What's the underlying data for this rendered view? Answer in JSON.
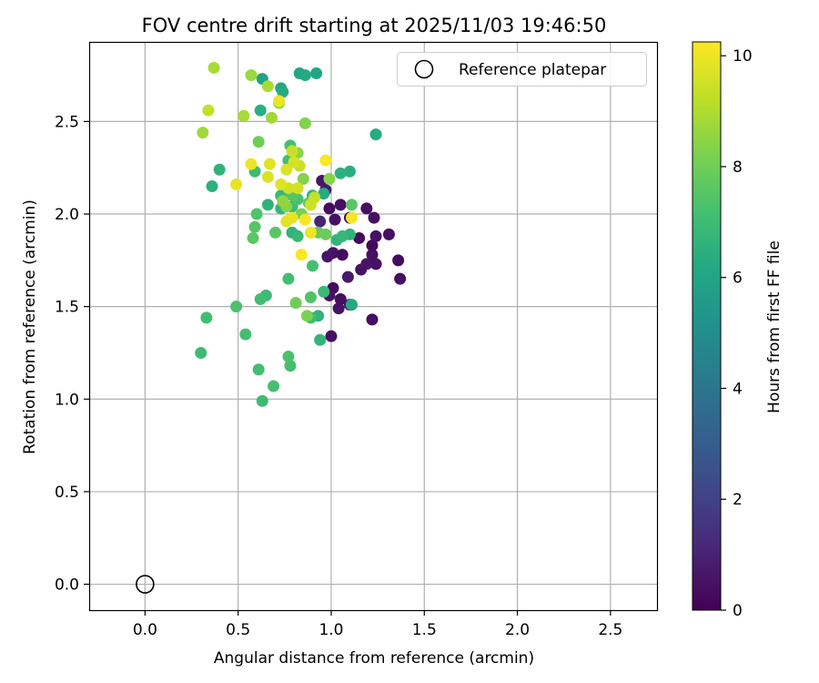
{
  "chart_data": {
    "type": "scatter",
    "title": "FOV centre drift starting at 2025/11/03 19:46:50",
    "xlabel": "Angular distance from reference (arcmin)",
    "ylabel": "Rotation from reference (arcmin)",
    "xlim": [
      -0.3,
      2.75
    ],
    "ylim": [
      -0.14,
      2.93
    ],
    "xticks": [
      0.0,
      0.5,
      1.0,
      1.5,
      2.0,
      2.5
    ],
    "xtick_labels": [
      "0.0",
      "0.5",
      "1.0",
      "1.5",
      "2.0",
      "2.5"
    ],
    "yticks": [
      0.0,
      0.5,
      1.0,
      1.5,
      2.0,
      2.5
    ],
    "ytick_labels": [
      "0.0",
      "0.5",
      "1.0",
      "1.5",
      "2.0",
      "2.5"
    ],
    "grid": true,
    "legend": {
      "position": "top-right",
      "label": "Reference platepar"
    },
    "reference_point": {
      "x": 0.0,
      "y": 0.0
    },
    "colorbar": {
      "label": "Hours from first FF file",
      "min": 0,
      "max": 10.25,
      "ticks": [
        0,
        2,
        4,
        6,
        8,
        10
      ],
      "tick_labels": [
        "0",
        "2",
        "4",
        "6",
        "8",
        "10"
      ],
      "colormap": "viridis"
    },
    "points": [
      {
        "x": 0.99,
        "y": 2.03,
        "h": 0.3
      },
      {
        "x": 1.05,
        "y": 2.05,
        "h": 0.4
      },
      {
        "x": 1.02,
        "y": 1.97,
        "h": 0.5
      },
      {
        "x": 1.1,
        "y": 1.98,
        "h": 0.4
      },
      {
        "x": 1.19,
        "y": 2.03,
        "h": 0.5
      },
      {
        "x": 1.23,
        "y": 1.98,
        "h": 0.4
      },
      {
        "x": 1.06,
        "y": 1.78,
        "h": 0.3
      },
      {
        "x": 0.98,
        "y": 1.77,
        "h": 0.6
      },
      {
        "x": 1.01,
        "y": 1.79,
        "h": 0.5
      },
      {
        "x": 1.15,
        "y": 1.87,
        "h": 0.3
      },
      {
        "x": 1.24,
        "y": 1.88,
        "h": 0.5
      },
      {
        "x": 1.31,
        "y": 1.89,
        "h": 0.4
      },
      {
        "x": 1.22,
        "y": 1.83,
        "h": 0.2
      },
      {
        "x": 1.22,
        "y": 1.78,
        "h": 0.4
      },
      {
        "x": 1.24,
        "y": 1.73,
        "h": 0.5
      },
      {
        "x": 1.36,
        "y": 1.75,
        "h": 0.3
      },
      {
        "x": 1.19,
        "y": 1.73,
        "h": 0.6
      },
      {
        "x": 1.16,
        "y": 1.7,
        "h": 0.5
      },
      {
        "x": 1.37,
        "y": 1.65,
        "h": 0.4
      },
      {
        "x": 1.09,
        "y": 1.66,
        "h": 0.7
      },
      {
        "x": 1.01,
        "y": 1.6,
        "h": 0.3
      },
      {
        "x": 0.99,
        "y": 1.56,
        "h": 0.5
      },
      {
        "x": 1.05,
        "y": 1.54,
        "h": 0.4
      },
      {
        "x": 1.1,
        "y": 1.51,
        "h": 0.6
      },
      {
        "x": 1.04,
        "y": 1.49,
        "h": 0.5
      },
      {
        "x": 1.22,
        "y": 1.43,
        "h": 0.4
      },
      {
        "x": 1.0,
        "y": 1.34,
        "h": 0.5
      },
      {
        "x": 0.95,
        "y": 2.18,
        "h": 0.6
      },
      {
        "x": 0.97,
        "y": 2.13,
        "h": 0.8
      },
      {
        "x": 0.94,
        "y": 1.96,
        "h": 1.0
      },
      {
        "x": 0.63,
        "y": 2.73,
        "h": 5.9
      },
      {
        "x": 0.73,
        "y": 2.68,
        "h": 6.0
      },
      {
        "x": 0.74,
        "y": 2.66,
        "h": 6.3
      },
      {
        "x": 0.83,
        "y": 2.76,
        "h": 6.1
      },
      {
        "x": 0.86,
        "y": 2.75,
        "h": 6.2
      },
      {
        "x": 0.92,
        "y": 2.76,
        "h": 6.0
      },
      {
        "x": 0.62,
        "y": 2.56,
        "h": 6.4
      },
      {
        "x": 1.24,
        "y": 2.43,
        "h": 6.3
      },
      {
        "x": 1.05,
        "y": 2.22,
        "h": 6.5
      },
      {
        "x": 1.1,
        "y": 2.23,
        "h": 6.4
      },
      {
        "x": 0.96,
        "y": 2.11,
        "h": 6.3
      },
      {
        "x": 0.9,
        "y": 2.1,
        "h": 6.5
      },
      {
        "x": 0.4,
        "y": 2.24,
        "h": 6.6
      },
      {
        "x": 0.36,
        "y": 2.15,
        "h": 6.5
      },
      {
        "x": 0.66,
        "y": 2.05,
        "h": 6.6
      },
      {
        "x": 0.73,
        "y": 2.1,
        "h": 6.8
      },
      {
        "x": 0.79,
        "y": 2.04,
        "h": 6.9
      },
      {
        "x": 0.73,
        "y": 2.03,
        "h": 6.7
      },
      {
        "x": 0.79,
        "y": 1.9,
        "h": 6.6
      },
      {
        "x": 0.82,
        "y": 1.88,
        "h": 6.8
      },
      {
        "x": 1.03,
        "y": 1.86,
        "h": 6.7
      },
      {
        "x": 1.06,
        "y": 1.88,
        "h": 6.8
      },
      {
        "x": 1.1,
        "y": 1.89,
        "h": 6.6
      },
      {
        "x": 0.93,
        "y": 1.45,
        "h": 6.6
      },
      {
        "x": 0.96,
        "y": 1.58,
        "h": 6.9
      },
      {
        "x": 0.89,
        "y": 1.44,
        "h": 7.0
      },
      {
        "x": 1.11,
        "y": 1.51,
        "h": 6.2
      },
      {
        "x": 0.94,
        "y": 1.32,
        "h": 6.7
      },
      {
        "x": 0.59,
        "y": 2.23,
        "h": 7.0
      },
      {
        "x": 0.78,
        "y": 2.37,
        "h": 7.2
      },
      {
        "x": 0.77,
        "y": 2.29,
        "h": 7.1
      },
      {
        "x": 0.6,
        "y": 2.0,
        "h": 7.4
      },
      {
        "x": 0.59,
        "y": 1.93,
        "h": 7.5
      },
      {
        "x": 0.58,
        "y": 1.87,
        "h": 7.6
      },
      {
        "x": 0.7,
        "y": 1.9,
        "h": 7.6
      },
      {
        "x": 0.82,
        "y": 2.08,
        "h": 7.3
      },
      {
        "x": 0.79,
        "y": 2.1,
        "h": 7.5
      },
      {
        "x": 0.88,
        "y": 2.06,
        "h": 7.7
      },
      {
        "x": 1.11,
        "y": 2.05,
        "h": 7.6
      },
      {
        "x": 0.93,
        "y": 1.9,
        "h": 7.8
      },
      {
        "x": 0.97,
        "y": 1.89,
        "h": 7.9
      },
      {
        "x": 0.9,
        "y": 1.72,
        "h": 7.2
      },
      {
        "x": 0.77,
        "y": 1.65,
        "h": 7.1
      },
      {
        "x": 0.65,
        "y": 1.56,
        "h": 6.9
      },
      {
        "x": 0.62,
        "y": 1.54,
        "h": 7.1
      },
      {
        "x": 0.89,
        "y": 1.55,
        "h": 7.4
      },
      {
        "x": 0.81,
        "y": 1.52,
        "h": 8.0
      },
      {
        "x": 0.87,
        "y": 1.45,
        "h": 8.2
      },
      {
        "x": 0.49,
        "y": 1.5,
        "h": 7.3
      },
      {
        "x": 0.33,
        "y": 1.44,
        "h": 7.1
      },
      {
        "x": 0.54,
        "y": 1.35,
        "h": 7.2
      },
      {
        "x": 0.3,
        "y": 1.25,
        "h": 7.0
      },
      {
        "x": 0.77,
        "y": 1.23,
        "h": 7.3
      },
      {
        "x": 0.78,
        "y": 1.18,
        "h": 7.2
      },
      {
        "x": 0.61,
        "y": 1.16,
        "h": 7.1
      },
      {
        "x": 0.69,
        "y": 1.07,
        "h": 7.2
      },
      {
        "x": 0.63,
        "y": 0.99,
        "h": 7.0
      },
      {
        "x": 0.61,
        "y": 2.39,
        "h": 8.0
      },
      {
        "x": 0.86,
        "y": 2.49,
        "h": 8.3
      },
      {
        "x": 0.72,
        "y": 2.6,
        "h": 8.5
      },
      {
        "x": 0.31,
        "y": 2.44,
        "h": 8.8
      },
      {
        "x": 0.53,
        "y": 2.53,
        "h": 8.9
      },
      {
        "x": 0.68,
        "y": 2.52,
        "h": 8.8
      },
      {
        "x": 0.37,
        "y": 2.79,
        "h": 8.9
      },
      {
        "x": 0.57,
        "y": 2.75,
        "h": 8.7
      },
      {
        "x": 0.66,
        "y": 2.69,
        "h": 8.9
      },
      {
        "x": 0.34,
        "y": 2.56,
        "h": 9.3
      },
      {
        "x": 0.82,
        "y": 2.33,
        "h": 8.5
      },
      {
        "x": 0.85,
        "y": 2.19,
        "h": 8.3
      },
      {
        "x": 0.99,
        "y": 2.19,
        "h": 8.4
      },
      {
        "x": 0.79,
        "y": 2.34,
        "h": 9.4
      },
      {
        "x": 0.8,
        "y": 2.28,
        "h": 9.6
      },
      {
        "x": 0.83,
        "y": 2.26,
        "h": 9.4
      },
      {
        "x": 0.76,
        "y": 2.24,
        "h": 9.7
      },
      {
        "x": 0.57,
        "y": 2.27,
        "h": 10.0
      },
      {
        "x": 0.67,
        "y": 2.27,
        "h": 9.8
      },
      {
        "x": 0.66,
        "y": 2.2,
        "h": 9.7
      },
      {
        "x": 0.73,
        "y": 2.16,
        "h": 9.8
      },
      {
        "x": 0.77,
        "y": 2.14,
        "h": 9.5
      },
      {
        "x": 0.49,
        "y": 2.16,
        "h": 9.9
      },
      {
        "x": 0.82,
        "y": 2.14,
        "h": 9.6
      },
      {
        "x": 0.91,
        "y": 2.09,
        "h": 9.3
      },
      {
        "x": 0.89,
        "y": 2.05,
        "h": 9.5
      },
      {
        "x": 0.76,
        "y": 1.96,
        "h": 9.8
      },
      {
        "x": 0.79,
        "y": 1.98,
        "h": 9.9
      },
      {
        "x": 0.86,
        "y": 1.97,
        "h": 10.1
      },
      {
        "x": 0.89,
        "y": 1.9,
        "h": 10.0
      },
      {
        "x": 0.97,
        "y": 2.29,
        "h": 10.2
      },
      {
        "x": 1.11,
        "y": 1.98,
        "h": 10.1
      },
      {
        "x": 0.84,
        "y": 1.78,
        "h": 10.2
      },
      {
        "x": 0.72,
        "y": 2.61,
        "h": 10.0
      },
      {
        "x": 0.74,
        "y": 2.07,
        "h": 8.6
      },
      {
        "x": 0.76,
        "y": 2.04,
        "h": 8.4
      },
      {
        "x": 0.84,
        "y": 2.0,
        "h": 8.2
      }
    ]
  }
}
